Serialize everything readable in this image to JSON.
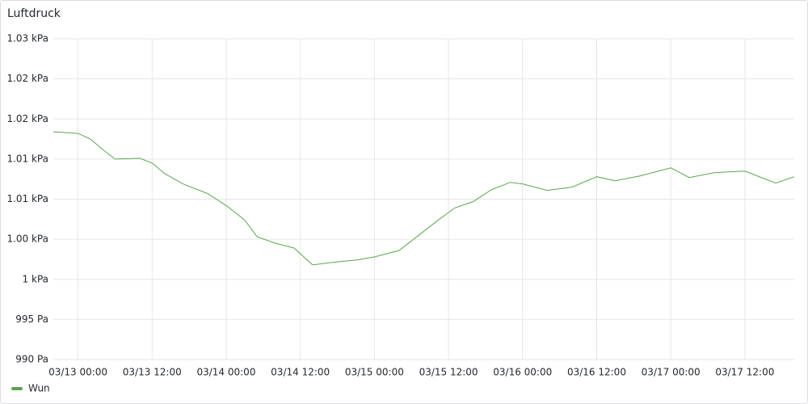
{
  "chart_data": {
    "type": "line",
    "title": "Luftdruck",
    "x": [
      "03/12 20:00",
      "03/13 00:00",
      "03/13 02:00",
      "03/13 04:00",
      "03/13 06:00",
      "03/13 10:00",
      "03/13 12:00",
      "03/13 14:00",
      "03/13 17:00",
      "03/13 21:00",
      "03/14 00:00",
      "03/14 03:00",
      "03/14 05:00",
      "03/14 08:00",
      "03/14 11:00",
      "03/14 14:00",
      "03/14 17:00",
      "03/14 21:00",
      "03/15 00:00",
      "03/15 04:00",
      "03/15 07:00",
      "03/15 10:00",
      "03/15 13:00",
      "03/15 16:00",
      "03/15 19:00",
      "03/15 22:00",
      "03/16 00:00",
      "03/16 04:00",
      "03/16 08:00",
      "03/16 12:00",
      "03/16 15:00",
      "03/16 19:00",
      "03/17 00:00",
      "03/17 03:00",
      "03/17 07:00",
      "03/17 12:00",
      "03/17 17:00",
      "03/17 20:00"
    ],
    "series": [
      {
        "name": "Wun",
        "color": "#5aa64e",
        "values": [
          1018.4,
          1018.2,
          1017.5,
          1016.2,
          1015.0,
          1015.1,
          1014.5,
          1013.2,
          1011.9,
          1010.7,
          1009.2,
          1007.4,
          1005.3,
          1004.5,
          1003.9,
          1001.8,
          1002.1,
          1002.4,
          1002.8,
          1003.6,
          1005.4,
          1007.2,
          1008.9,
          1009.7,
          1011.2,
          1012.1,
          1011.9,
          1011.1,
          1011.5,
          1012.8,
          1012.3,
          1012.9,
          1013.9,
          1012.7,
          1013.3,
          1013.5,
          1012.0,
          1012.8
        ]
      }
    ],
    "xlim": [
      "03/12 20:00",
      "03/17 20:00"
    ],
    "xticks": [
      "03/13 00:00",
      "03/13 12:00",
      "03/14 00:00",
      "03/14 12:00",
      "03/15 00:00",
      "03/15 12:00",
      "03/16 00:00",
      "03/16 12:00",
      "03/17 00:00",
      "03/17 12:00"
    ],
    "ylim": [
      990,
      1030
    ],
    "yticks": [
      {
        "value": 990,
        "label": "990 Pa"
      },
      {
        "value": 995,
        "label": "995 Pa"
      },
      {
        "value": 1000,
        "label": "1 kPa"
      },
      {
        "value": 1005,
        "label": "1.00 kPa"
      },
      {
        "value": 1010,
        "label": "1.01 kPa"
      },
      {
        "value": 1015,
        "label": "1.01 kPa"
      },
      {
        "value": 1020,
        "label": "1.02 kPa"
      },
      {
        "value": 1025,
        "label": "1.02 kPa"
      },
      {
        "value": 1030,
        "label": "1.03 kPa"
      }
    ],
    "grid": true
  }
}
